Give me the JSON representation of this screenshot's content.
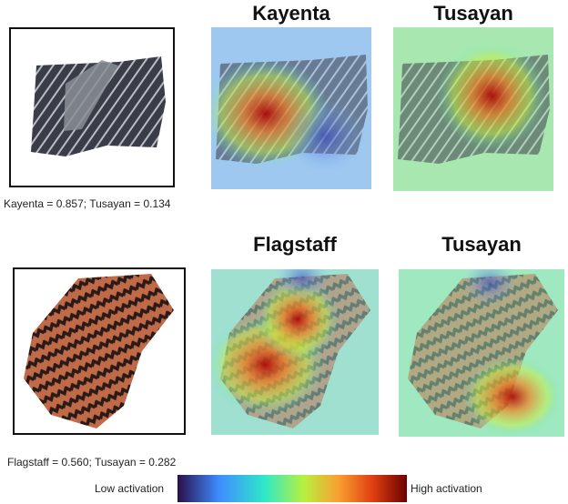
{
  "rows": [
    {
      "caption": "Kayenta = 0.857; Tusayan = 0.134",
      "maps": [
        {
          "title": "Kayenta"
        },
        {
          "title": "Tusayan"
        }
      ]
    },
    {
      "caption": "Flagstaff = 0.560; Tusayan = 0.282",
      "maps": [
        {
          "title": "Flagstaff"
        },
        {
          "title": "Tusayan"
        }
      ]
    }
  ],
  "colorbar": {
    "low_label": "Low activation",
    "high_label": "High activation",
    "colormap": "jet",
    "colors": [
      "#2a0f4a",
      "#3f8cff",
      "#2ee8c8",
      "#b8f040",
      "#f9a030",
      "#e04010",
      "#6a0000"
    ]
  }
}
